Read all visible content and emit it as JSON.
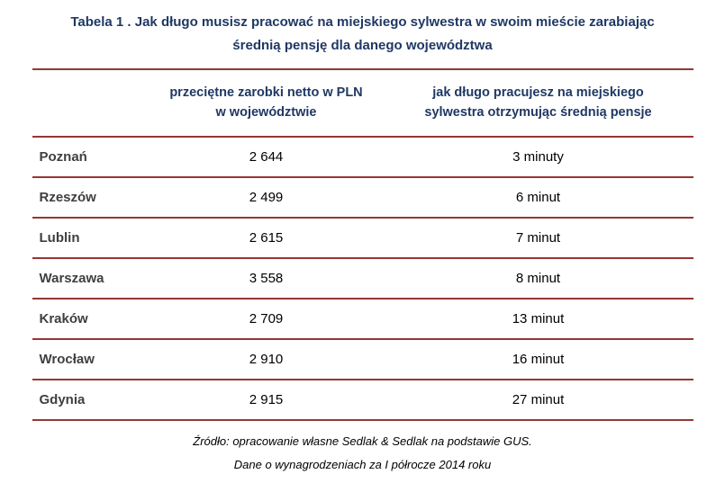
{
  "title": {
    "line1": "Tabela 1 . Jak długo musisz pracować na miejskiego sylwestra w swoim mieście zarabiając",
    "line2": "średnią pensję dla danego województwa"
  },
  "table": {
    "header": {
      "city": "",
      "salary_line1": "przeciętne zarobki netto w PLN",
      "salary_line2": "w województwie",
      "time_line1": "jak długo pracujesz na miejskiego",
      "time_line2": "sylwestra otrzymując średnią pensje"
    },
    "rows": [
      {
        "city": "Poznań",
        "salary": "2 644",
        "time": "3 minuty"
      },
      {
        "city": "Rzeszów",
        "salary": "2 499",
        "time": "6 minut"
      },
      {
        "city": "Lublin",
        "salary": "2 615",
        "time": "7 minut"
      },
      {
        "city": "Warszawa",
        "salary": "3 558",
        "time": "8 minut"
      },
      {
        "city": "Kraków",
        "salary": "2 709",
        "time": "13 minut"
      },
      {
        "city": "Wrocław",
        "salary": "2 910",
        "time": "16 minut"
      },
      {
        "city": "Gdynia",
        "salary": "2 915",
        "time": "27 minut"
      }
    ]
  },
  "footer": {
    "line1": "Źródło: opracowanie własne Sedlak & Sedlak na podstawie GUS.",
    "line2": "Dane o wynagrodzeniach za I półrocze 2014 roku"
  },
  "colors": {
    "title_text": "#1F3864",
    "header_text": "#1F3864",
    "rule": "#953735",
    "city_text": "#3F3F3F"
  },
  "chart_data": {
    "type": "table",
    "title": "Tabela 1 . Jak długo musisz pracować na miejskiego sylwestra w swoim mieście zarabiając średnią pensję dla danego województwa",
    "columns": [
      "",
      "przeciętne zarobki netto w PLN w województwie",
      "jak długo pracujesz na miejskiego sylwestra otrzymując średnią pensje"
    ],
    "rows": [
      [
        "Poznań",
        2644,
        "3 minuty"
      ],
      [
        "Rzeszów",
        2499,
        "6 minut"
      ],
      [
        "Lublin",
        2615,
        "7 minut"
      ],
      [
        "Warszawa",
        3558,
        "8 minut"
      ],
      [
        "Kraków",
        2709,
        "13 minut"
      ],
      [
        "Wrocław",
        2910,
        "16 minut"
      ],
      [
        "Gdynia",
        2915,
        "27 minut"
      ]
    ],
    "source": "Źródło: opracowanie własne Sedlak & Sedlak na podstawie GUS. Dane o wynagrodzeniach za I półrocze 2014 roku"
  }
}
